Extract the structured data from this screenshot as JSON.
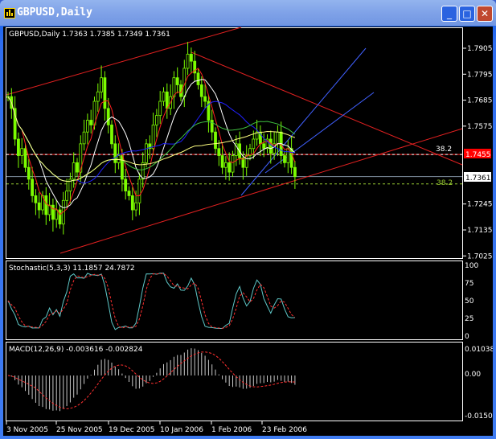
{
  "window": {
    "title": "GBPUSD,Daily",
    "buttons": {
      "minimize": "_",
      "maximize": "□",
      "close": "✕"
    }
  },
  "main_pane": {
    "label": "GBPUSD,Daily  1.7363 1.7385 1.7349 1.7361",
    "price_ticks": [
      "1.7905",
      "1.7795",
      "1.7685",
      "1.7575",
      "1.7245",
      "1.7135",
      "1.7025"
    ],
    "current_price": "1.7361",
    "line_price": "1.7455",
    "fib_labels": [
      "38.2",
      "38.2"
    ]
  },
  "stoch_pane": {
    "label": "Stochastic(5,3,3)  11.1857  24.7872",
    "ticks": [
      "100",
      "75",
      "50",
      "25",
      "0"
    ]
  },
  "macd_pane": {
    "label": "MACD(12,26,9)   -0.003616  -0.002824",
    "ticks": [
      "0.01038",
      "0.00",
      "-0.01505"
    ]
  },
  "time_axis": [
    "3 Nov 2005",
    "25 Nov 2005",
    "19 Dec 2005",
    "10 Jan 2006",
    "1 Feb 2006",
    "23 Feb 2006"
  ],
  "colors": {
    "bull": "#7cfc00",
    "ma_red": "#ff2020",
    "ma_blue": "#2020ff",
    "ma_yellow": "#ffff80",
    "ma_white": "#ffffff",
    "ma_green": "#40c040",
    "trend": "#e02020",
    "channel": "#4060ff",
    "stoch_main": "#5fc8c8",
    "signal": "#ff3030"
  },
  "chart_data": {
    "type": "candlestick",
    "symbol": "GBPUSD",
    "timeframe": "Daily",
    "ylim": [
      1.7025,
      1.7905
    ],
    "close": [
      1.77,
      1.765,
      1.752,
      1.745,
      1.748,
      1.74,
      1.735,
      1.728,
      1.725,
      1.722,
      1.728,
      1.72,
      1.724,
      1.718,
      1.722,
      1.716,
      1.726,
      1.73,
      1.735,
      1.742,
      1.738,
      1.75,
      1.755,
      1.76,
      1.758,
      1.768,
      1.772,
      1.778,
      1.765,
      1.758,
      1.75,
      1.742,
      1.745,
      1.735,
      1.73,
      1.728,
      1.722,
      1.725,
      1.735,
      1.742,
      1.75,
      1.748,
      1.758,
      1.762,
      1.768,
      1.772,
      1.765,
      1.77,
      1.778,
      1.775,
      1.77,
      1.782,
      1.788,
      1.785,
      1.78,
      1.775,
      1.77,
      1.768,
      1.76,
      1.755,
      1.748,
      1.745,
      1.74,
      1.742,
      1.738,
      1.745,
      1.75,
      1.744,
      1.74,
      1.745,
      1.748,
      1.752,
      1.755,
      1.75,
      1.748,
      1.752,
      1.746,
      1.75,
      1.755,
      1.745,
      1.742,
      1.748,
      1.74,
      1.7361
    ]
  }
}
